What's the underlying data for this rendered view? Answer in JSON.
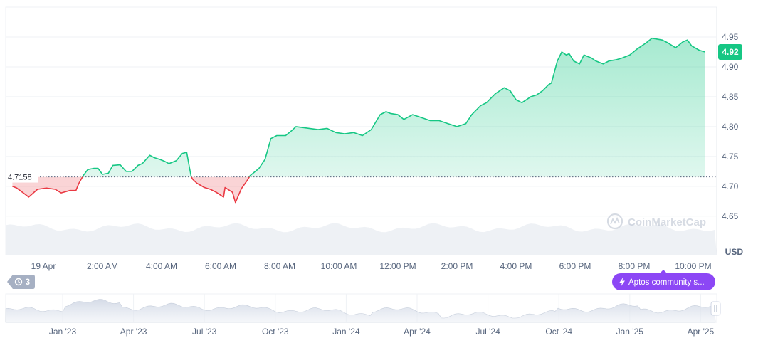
{
  "currency_label": "USD",
  "current_price_label": "4.92",
  "baseline_label": "4.7158",
  "history_badge_count": "3",
  "news_badge_label": "Aptos community s...",
  "watermark_label": "CoinMarketCap",
  "colors": {
    "up": "#16c784",
    "down": "#ea3943",
    "badge_green": "#16c784",
    "news_purple": "#8c47f5",
    "history_badge": "#a6b0c3"
  },
  "chart_data": {
    "type": "area",
    "ylim": [
      4.62,
      5.0
    ],
    "baseline": 4.7158,
    "y_ticks": [
      {
        "value": 4.95,
        "label": "4.95"
      },
      {
        "value": 4.9,
        "label": "4.90"
      },
      {
        "value": 4.85,
        "label": "4.85"
      },
      {
        "value": 4.8,
        "label": "4.80"
      },
      {
        "value": 4.75,
        "label": "4.75"
      },
      {
        "value": 4.7,
        "label": "4.70"
      },
      {
        "value": 4.65,
        "label": "4.65"
      }
    ],
    "x_ticks": [
      {
        "hour": 0,
        "label": "19 Apr"
      },
      {
        "hour": 2,
        "label": "2:00 AM"
      },
      {
        "hour": 4,
        "label": "4:00 AM"
      },
      {
        "hour": 6,
        "label": "6:00 AM"
      },
      {
        "hour": 8,
        "label": "8:00 AM"
      },
      {
        "hour": 10,
        "label": "10:00 AM"
      },
      {
        "hour": 12,
        "label": "12:00 PM"
      },
      {
        "hour": 14,
        "label": "2:00 PM"
      },
      {
        "hour": 16,
        "label": "4:00 PM"
      },
      {
        "hour": 18,
        "label": "6:00 PM"
      },
      {
        "hour": 20,
        "label": "8:00 PM"
      },
      {
        "hour": 22,
        "label": "10:00 PM"
      }
    ],
    "x": [
      -1.05,
      -0.9,
      -0.6,
      -0.5,
      -0.2,
      0.1,
      0.4,
      0.6,
      0.9,
      1.1,
      1.2,
      1.35,
      1.5,
      1.7,
      1.85,
      2.0,
      2.2,
      2.35,
      2.6,
      2.8,
      3.0,
      3.2,
      3.35,
      3.6,
      3.75,
      3.95,
      4.1,
      4.25,
      4.5,
      4.7,
      4.85,
      4.95,
      5.0,
      5.05,
      5.2,
      5.45,
      5.65,
      5.85,
      6.1,
      6.15,
      6.4,
      6.5,
      6.7,
      6.9,
      7.0,
      7.3,
      7.5,
      7.7,
      7.9,
      8.2,
      8.4,
      8.55,
      9.0,
      9.3,
      9.6,
      9.9,
      10.2,
      10.5,
      10.8,
      11.1,
      11.4,
      11.6,
      11.75,
      12.0,
      12.2,
      12.5,
      12.8,
      13.1,
      13.4,
      13.7,
      14.0,
      14.3,
      14.5,
      14.8,
      15.0,
      15.3,
      15.6,
      15.8,
      16.0,
      16.2,
      16.5,
      16.7,
      16.9,
      17.1,
      17.2,
      17.4,
      17.55,
      17.7,
      17.8,
      17.95,
      18.15,
      18.3,
      18.55,
      18.7,
      18.95,
      19.15,
      19.4,
      19.6,
      19.85,
      20.1,
      20.4,
      20.6,
      20.95,
      21.15,
      21.4,
      21.65,
      21.8,
      21.95,
      22.2,
      22.4
    ],
    "y": [
      4.7,
      4.697,
      4.686,
      4.682,
      4.695,
      4.697,
      4.695,
      4.689,
      4.693,
      4.693,
      4.705,
      4.718,
      4.728,
      4.73,
      4.73,
      4.72,
      4.722,
      4.735,
      4.736,
      4.725,
      4.725,
      4.735,
      4.738,
      4.752,
      4.748,
      4.745,
      4.742,
      4.738,
      4.743,
      4.755,
      4.757,
      4.73,
      4.717,
      4.712,
      4.705,
      4.698,
      4.695,
      4.69,
      4.682,
      4.698,
      4.69,
      4.673,
      4.696,
      4.71,
      4.718,
      4.73,
      4.745,
      4.78,
      4.785,
      4.785,
      4.793,
      4.8,
      4.797,
      4.795,
      4.797,
      4.79,
      4.788,
      4.79,
      4.785,
      4.795,
      4.82,
      4.825,
      4.822,
      4.82,
      4.812,
      4.82,
      4.815,
      4.81,
      4.81,
      4.805,
      4.8,
      4.805,
      4.82,
      4.835,
      4.84,
      4.855,
      4.865,
      4.86,
      4.845,
      4.84,
      4.85,
      4.853,
      4.86,
      4.87,
      4.873,
      4.91,
      4.925,
      4.92,
      4.922,
      4.91,
      4.905,
      4.92,
      4.915,
      4.91,
      4.905,
      4.91,
      4.912,
      4.915,
      4.92,
      4.93,
      4.94,
      4.948,
      4.945,
      4.94,
      4.932,
      4.942,
      4.945,
      4.935,
      4.928,
      4.925
    ],
    "navigator": {
      "x_labels": [
        "Jan '23",
        "Apr '23",
        "Jul '23",
        "Oct '23",
        "Jan '24",
        "Apr '24",
        "Jul '24",
        "Oct '24",
        "Jan '25",
        "Apr '25"
      ]
    }
  }
}
